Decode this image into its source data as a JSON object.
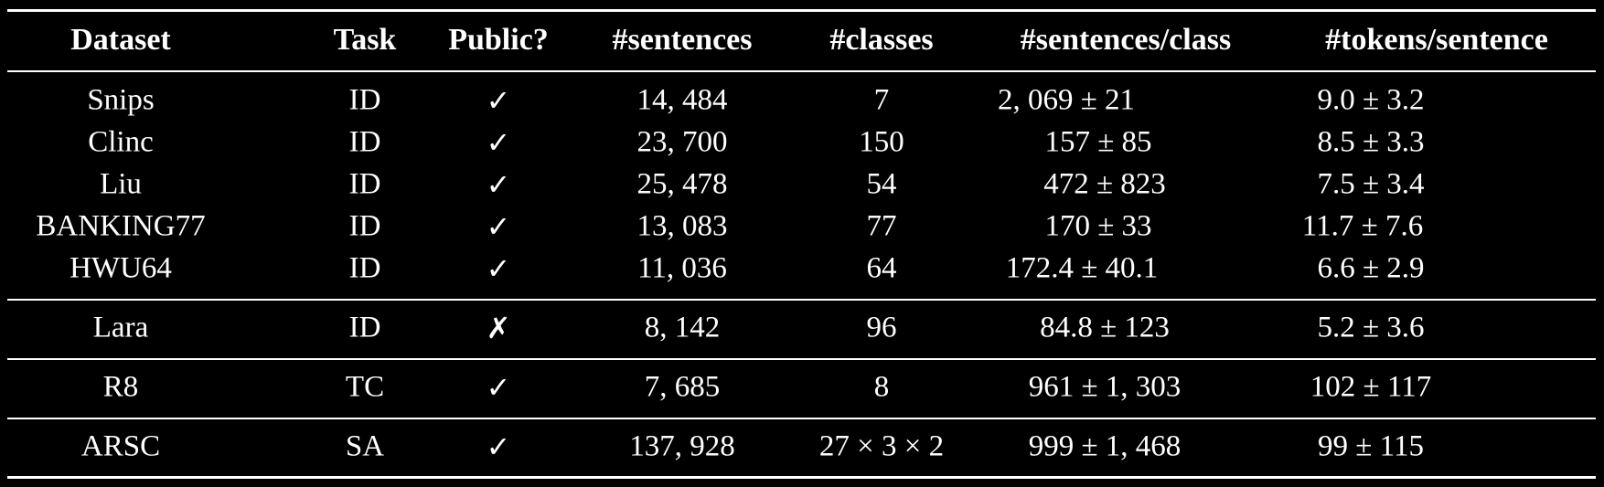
{
  "table": {
    "headers": [
      "Dataset",
      "Task",
      "Public?",
      "#sentences",
      "#classes",
      "#sentences/class",
      "#tokens/sentence"
    ],
    "groups": [
      {
        "rows": [
          {
            "dataset": "Snips",
            "task": "ID",
            "public": "✓",
            "sentences": "14, 484",
            "classes": "7",
            "sentences_per_class": "2, 069 ± 21",
            "tokens_per_sentence": "9.0 ± 3.2"
          },
          {
            "dataset": "Clinc",
            "task": "ID",
            "public": "✓",
            "sentences": "23, 700",
            "classes": "150",
            "sentences_per_class": "157 ± 85",
            "tokens_per_sentence": "8.5 ± 3.3"
          },
          {
            "dataset": "Liu",
            "task": "ID",
            "public": "✓",
            "sentences": "25, 478",
            "classes": "54",
            "sentences_per_class": "472 ± 823",
            "tokens_per_sentence": "7.5 ± 3.4"
          },
          {
            "dataset": "BANKING77",
            "task": "ID",
            "public": "✓",
            "sentences": "13, 083",
            "classes": "77",
            "sentences_per_class": "170 ± 33",
            "tokens_per_sentence": "11.7 ± 7.6"
          },
          {
            "dataset": "HWU64",
            "task": "ID",
            "public": "✓",
            "sentences": "11, 036",
            "classes": "64",
            "sentences_per_class": "172.4 ± 40.1",
            "tokens_per_sentence": "6.6 ± 2.9"
          }
        ]
      },
      {
        "rows": [
          {
            "dataset": "Lara",
            "task": "ID",
            "public": "✗",
            "sentences": "8, 142",
            "classes": "96",
            "sentences_per_class": "84.8 ± 123",
            "tokens_per_sentence": "5.2 ± 3.6"
          }
        ]
      },
      {
        "rows": [
          {
            "dataset": "R8",
            "task": "TC",
            "public": "✓",
            "sentences": "7, 685",
            "classes": "8",
            "sentences_per_class": "961 ± 1, 303",
            "tokens_per_sentence": "102 ± 117"
          }
        ]
      },
      {
        "rows": [
          {
            "dataset": "ARSC",
            "task": "SA",
            "public": "✓",
            "sentences": "137, 928",
            "classes": "27 × 3 × 2",
            "sentences_per_class": "999 ± 1, 468",
            "tokens_per_sentence": "99 ± 115"
          }
        ]
      }
    ]
  }
}
